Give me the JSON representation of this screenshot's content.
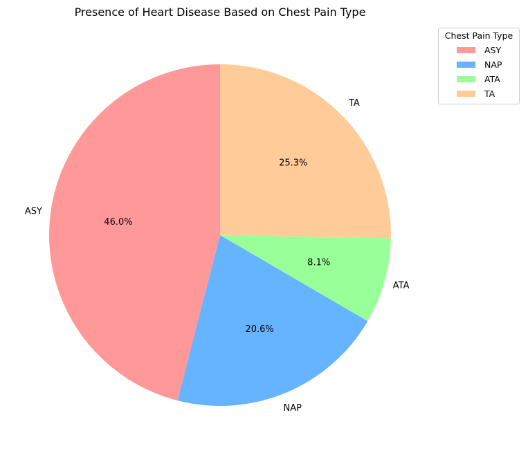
{
  "chart_data": {
    "type": "pie",
    "title": "Presence of Heart Disease Based on Chest Pain Type",
    "labels": [
      "ASY",
      "NAP",
      "ATA",
      "TA"
    ],
    "values": [
      46.0,
      20.6,
      8.1,
      25.3
    ],
    "percent_labels": [
      "46.0%",
      "20.6%",
      "8.1%",
      "25.3%"
    ],
    "colors": [
      "#ff9999",
      "#66b3ff",
      "#99ff99",
      "#ffcc99"
    ],
    "start_angle_deg": 90,
    "direction": "counterclockwise",
    "legend": {
      "title": "Chest Pain Type",
      "placement": "upper right, outside plot",
      "entries": [
        "ASY",
        "NAP",
        "ATA",
        "TA"
      ]
    }
  }
}
